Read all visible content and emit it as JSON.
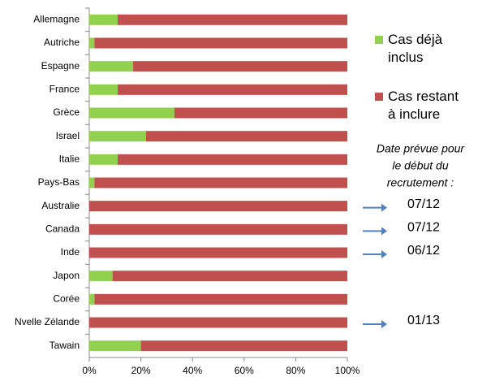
{
  "chart_data": {
    "type": "stacked_barh",
    "categories": [
      "Allemagne",
      "Autriche",
      "Espagne",
      "France",
      "Grèce",
      "Israel",
      "Italie",
      "Pays-Bas",
      "Australie",
      "Canada",
      "Inde",
      "Japon",
      "Corée",
      "Nvelle Zélande",
      "Tawain"
    ],
    "series": [
      {
        "name": "Cas déjà inclus",
        "color": "#92d050",
        "values": [
          11,
          2,
          17,
          11,
          33,
          22,
          11,
          2,
          0,
          0,
          0,
          9,
          2,
          0,
          20
        ]
      },
      {
        "name": "Cas restant à inclure",
        "color": "#c0504d",
        "values": [
          89,
          98,
          83,
          89,
          67,
          78,
          89,
          98,
          100,
          100,
          100,
          91,
          98,
          100,
          80
        ]
      }
    ],
    "xlim": [
      0,
      100
    ],
    "xticks": [
      {
        "value": 0,
        "label": "0%"
      },
      {
        "value": 20,
        "label": "20%"
      },
      {
        "value": 40,
        "label": "40%"
      },
      {
        "value": 60,
        "label": "60%"
      },
      {
        "value": 80,
        "label": "80%"
      },
      {
        "value": 100,
        "label": "100%"
      }
    ],
    "legend": "right",
    "note": [
      "Date prévue pour",
      "le début du",
      "recrutement :"
    ],
    "date_labels": [
      null,
      null,
      null,
      null,
      null,
      null,
      null,
      null,
      "07/12",
      "07/12",
      "06/12",
      null,
      null,
      "01/13",
      null
    ]
  }
}
